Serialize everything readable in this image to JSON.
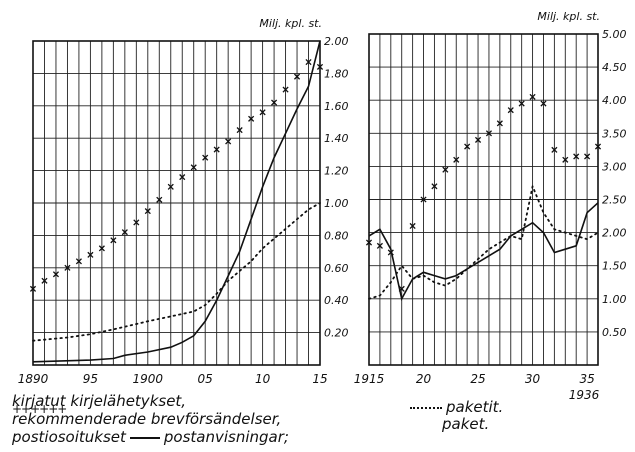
{
  "chart_data": [
    {
      "type": "line",
      "id": "left",
      "unit_label": "Milj. kpl. st.",
      "x_ticks": [
        "1890",
        "95",
        "1900",
        "05",
        "10",
        "15"
      ],
      "y_ticks": [
        "0.20",
        "0.40",
        "0.60",
        "0.80",
        "1.00",
        "1.20",
        "1.40",
        "1.60",
        "1.80",
        "2.00"
      ],
      "xlim": [
        1890,
        1915
      ],
      "ylim": [
        0,
        2.0
      ],
      "grid": true,
      "series": [
        {
          "key": "registered",
          "style": "crosses",
          "x": [
            1890,
            1891,
            1892,
            1893,
            1894,
            1895,
            1896,
            1897,
            1898,
            1899,
            1900,
            1901,
            1902,
            1903,
            1904,
            1905,
            1906,
            1907,
            1908,
            1909,
            1910,
            1911,
            1912,
            1913,
            1914,
            1915
          ],
          "y": [
            0.47,
            0.52,
            0.56,
            0.6,
            0.64,
            0.68,
            0.72,
            0.77,
            0.82,
            0.88,
            0.95,
            1.02,
            1.1,
            1.16,
            1.22,
            1.28,
            1.33,
            1.38,
            1.45,
            1.52,
            1.56,
            1.62,
            1.7,
            1.78,
            1.87,
            1.84
          ]
        },
        {
          "key": "money_orders",
          "style": "solid",
          "x": [
            1890,
            1895,
            1897,
            1898,
            1900,
            1902,
            1903,
            1904,
            1905,
            1906,
            1907,
            1908,
            1909,
            1910,
            1911,
            1912,
            1913,
            1914,
            1915
          ],
          "y": [
            0.02,
            0.03,
            0.04,
            0.06,
            0.08,
            0.11,
            0.14,
            0.18,
            0.27,
            0.4,
            0.55,
            0.7,
            0.9,
            1.1,
            1.28,
            1.43,
            1.58,
            1.72,
            2.0
          ]
        },
        {
          "key": "parcels",
          "style": "dotted",
          "x": [
            1890,
            1893,
            1895,
            1897,
            1900,
            1902,
            1904,
            1905,
            1906,
            1907,
            1908,
            1909,
            1910,
            1911,
            1912,
            1913,
            1914,
            1915
          ],
          "y": [
            0.15,
            0.17,
            0.19,
            0.22,
            0.27,
            0.3,
            0.33,
            0.37,
            0.44,
            0.52,
            0.58,
            0.64,
            0.72,
            0.78,
            0.84,
            0.9,
            0.96,
            1.0
          ]
        }
      ]
    },
    {
      "type": "line",
      "id": "right",
      "unit_label": "Milj. kpl. st.",
      "x_ticks": [
        "1915",
        "20",
        "25",
        "30",
        "35"
      ],
      "x_end_label": "1936",
      "y_ticks": [
        "0.50",
        "1.00",
        "1.50",
        "2.00",
        "2.50",
        "3.00",
        "3.50",
        "4.00",
        "4.50",
        "5.00"
      ],
      "xlim": [
        1915,
        1936
      ],
      "ylim": [
        0,
        5.0
      ],
      "grid": true,
      "series": [
        {
          "key": "registered",
          "style": "crosses",
          "x": [
            1915,
            1916,
            1917,
            1918,
            1919,
            1920,
            1921,
            1922,
            1923,
            1924,
            1925,
            1926,
            1927,
            1928,
            1929,
            1930,
            1931,
            1932,
            1933,
            1934,
            1935,
            1936
          ],
          "y": [
            1.85,
            1.8,
            1.7,
            1.15,
            2.1,
            2.5,
            2.7,
            2.95,
            3.1,
            3.3,
            3.4,
            3.5,
            3.65,
            3.85,
            3.95,
            4.05,
            3.95,
            3.25,
            3.1,
            3.15,
            3.15,
            3.3
          ]
        },
        {
          "key": "money_orders",
          "style": "solid",
          "x": [
            1915,
            1916,
            1917,
            1918,
            1919,
            1920,
            1921,
            1922,
            1923,
            1924,
            1925,
            1926,
            1927,
            1928,
            1929,
            1930,
            1931,
            1932,
            1933,
            1934,
            1935,
            1936
          ],
          "y": [
            1.95,
            2.05,
            1.75,
            1.0,
            1.3,
            1.4,
            1.35,
            1.3,
            1.35,
            1.45,
            1.55,
            1.65,
            1.75,
            1.95,
            2.05,
            2.15,
            2.0,
            1.7,
            1.75,
            1.8,
            2.3,
            2.45
          ]
        },
        {
          "key": "parcels",
          "style": "dotted",
          "x": [
            1915,
            1916,
            1917,
            1918,
            1919,
            1920,
            1921,
            1922,
            1923,
            1924,
            1925,
            1926,
            1927,
            1928,
            1929,
            1930,
            1931,
            1932,
            1933,
            1934,
            1935,
            1936
          ],
          "y": [
            1.0,
            1.05,
            1.25,
            1.5,
            1.3,
            1.35,
            1.25,
            1.2,
            1.3,
            1.45,
            1.6,
            1.75,
            1.85,
            1.95,
            1.9,
            2.7,
            2.3,
            2.05,
            2.0,
            1.95,
            1.9,
            2.0
          ]
        }
      ]
    }
  ],
  "legend": {
    "line1": "kirjatut kirjelähetykset,",
    "line2_marker": "++++++",
    "line2": "rekommenderade brevförsändelser,",
    "line3a": "postiosoitukset",
    "line3b": "postanvisningar;",
    "parcels_fi": "paketit.",
    "parcels_sv": "paket."
  }
}
